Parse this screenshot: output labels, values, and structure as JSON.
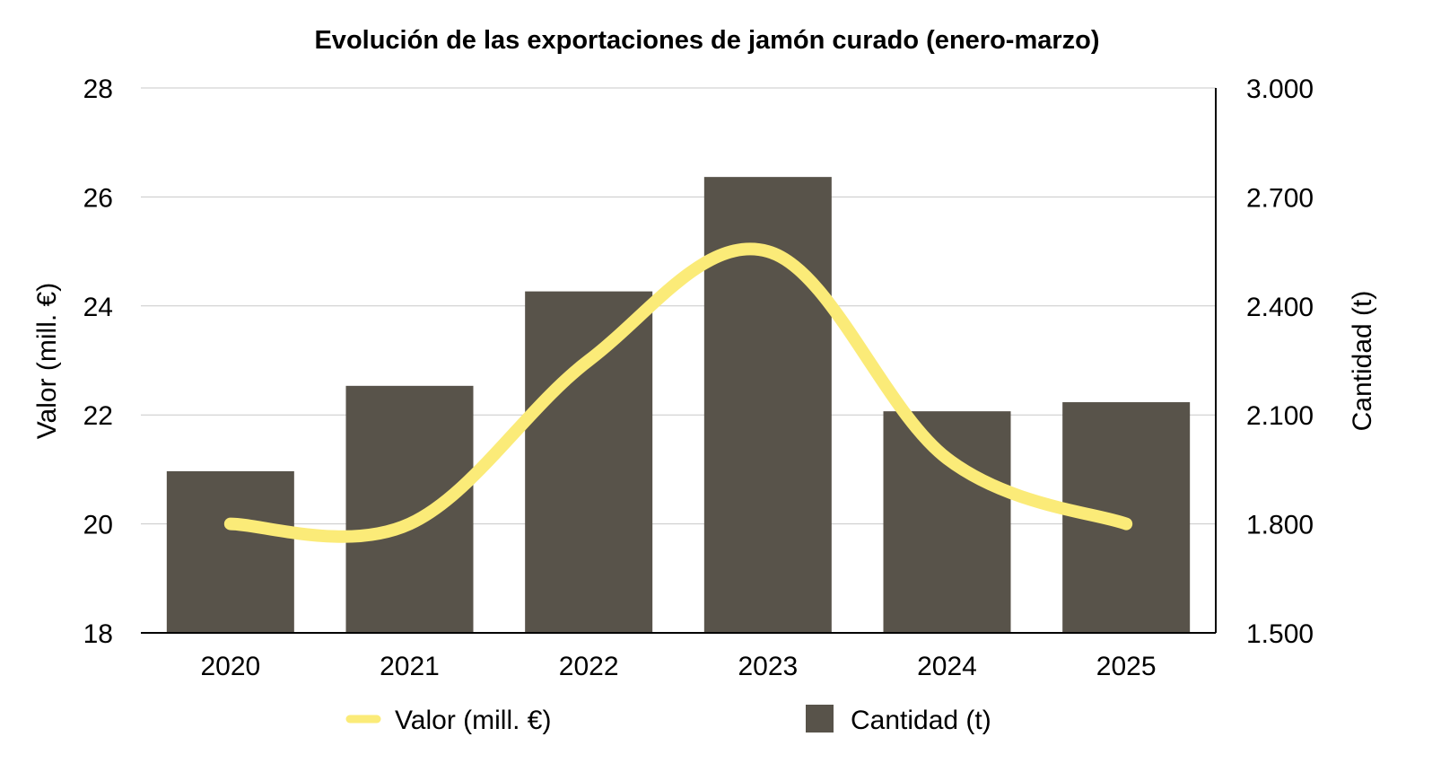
{
  "chart_data": {
    "type": "bar",
    "title": "Evolución de las exportaciones de jamón curado (enero-marzo)",
    "categories": [
      "2020",
      "2021",
      "2022",
      "2023",
      "2024",
      "2025"
    ],
    "series": [
      {
        "name": "Cantidad (t)",
        "type": "bar",
        "axis": "right",
        "values": [
          1945,
          2180,
          2440,
          2755,
          2110,
          2135
        ]
      },
      {
        "name": "Valor (mill. €)",
        "type": "line",
        "axis": "left",
        "smooth": true,
        "values": [
          20.0,
          20.0,
          23.0,
          25.0,
          21.2,
          20.0
        ]
      }
    ],
    "y_left": {
      "label": "Valor (mill. €)",
      "ylim": [
        18,
        28
      ],
      "ticks": [
        "18",
        "20",
        "22",
        "24",
        "26",
        "28"
      ]
    },
    "y_right": {
      "label": "Cantidad (t)",
      "ylim": [
        1500,
        3000
      ],
      "ticks": [
        "1.500",
        "1.800",
        "2.100",
        "2.400",
        "2.700",
        "3.000"
      ]
    },
    "grid": true,
    "legend_position": "bottom",
    "colors": {
      "bar": "#58534a",
      "line": "#fbeb78",
      "grid": "#c8c8c8",
      "axis": "#000000"
    }
  }
}
